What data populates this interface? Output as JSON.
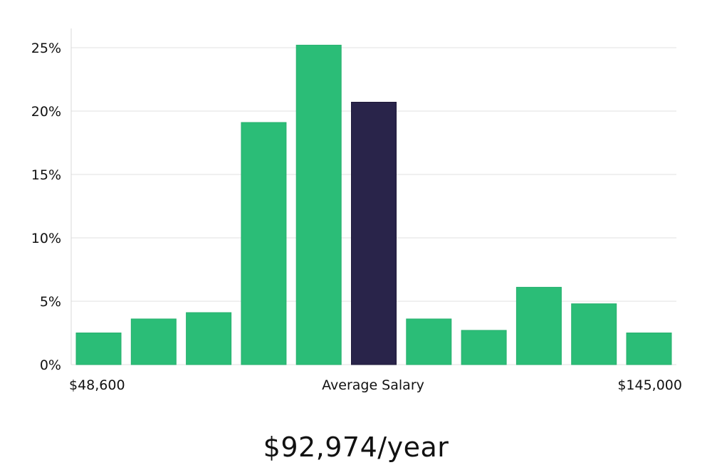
{
  "chart_data": {
    "type": "bar",
    "categories": [
      "1",
      "2",
      "3",
      "4",
      "5",
      "6",
      "7",
      "8",
      "9",
      "10",
      "11"
    ],
    "values": [
      2.5,
      3.6,
      4.1,
      19.1,
      25.2,
      20.7,
      3.6,
      2.7,
      6.1,
      4.8,
      2.5
    ],
    "highlight_index": 5,
    "ylim": [
      0,
      26.5
    ],
    "yticks": [
      0,
      5,
      10,
      15,
      20,
      25
    ],
    "ytick_labels": [
      "0%",
      "5%",
      "10%",
      "15%",
      "20%",
      "25%"
    ],
    "x_min_label": "$48,600",
    "x_mid_label": "Average Salary",
    "x_max_label": "$145,000",
    "grid": true,
    "colors": {
      "bar": "#2bbd77",
      "highlight": "#29244a",
      "grid": "#e2e2e2",
      "axis": "#d8d8d8"
    }
  },
  "salary_headline": "$92,974/year"
}
